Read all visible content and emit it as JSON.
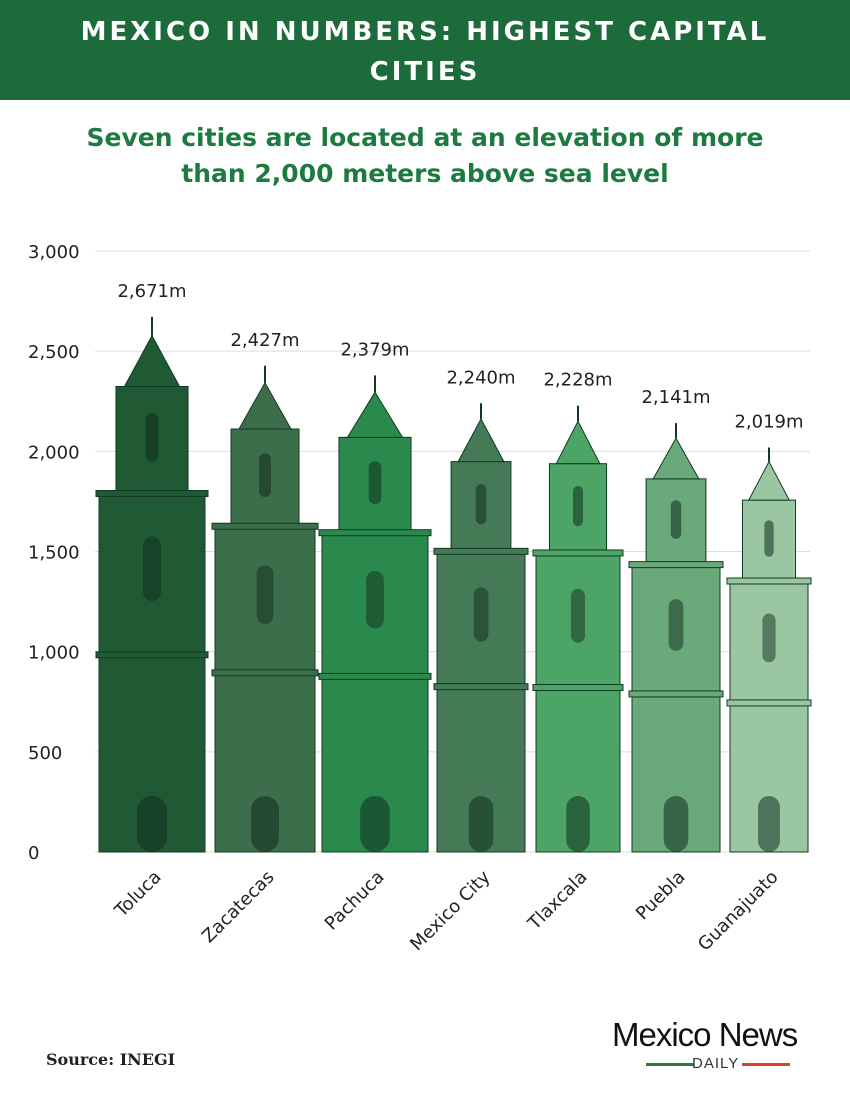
{
  "header": {
    "title": "MEXICO IN NUMBERS: HIGHEST CAPITAL CITIES"
  },
  "subtitle": "Seven cities are located at an elevation of more than 2,000 meters above sea level",
  "source": "Source: INEGI",
  "logo": {
    "name": "Mexico News",
    "tagline": "DAILY",
    "line_colors": [
      "#2e7d32",
      "#d9412b"
    ]
  },
  "colors": {
    "header_bg": "#1d6b3a",
    "subtitle": "#1d7a40",
    "grid": "#dddddd"
  },
  "chart_data": {
    "type": "bar",
    "title": "",
    "xlabel": "",
    "ylabel": "",
    "ylim": [
      0,
      3000
    ],
    "yticks": [
      0,
      500,
      1000,
      1500,
      2000,
      2500,
      3000
    ],
    "ytick_labels": [
      "0",
      "500",
      "1,000",
      "1,500",
      "2,000",
      "2,500",
      "3,000"
    ],
    "grid": true,
    "categories": [
      "Toluca",
      "Zacatecas",
      "Pachuca",
      "Mexico City",
      "Tlaxcala",
      "Puebla",
      "Guanajuato"
    ],
    "values": [
      2671,
      2427,
      2379,
      2240,
      2228,
      2141,
      2019
    ],
    "data_labels": [
      "2,671m",
      "2,427m",
      "2,379m",
      "2,240m",
      "2,228m",
      "2,141m",
      "2,019m"
    ],
    "bar_colors": [
      "#1f5a35",
      "#3d6e4c",
      "#2a8a4e",
      "#457a57",
      "#4ca567",
      "#6aa97a",
      "#9ac7a2"
    ]
  }
}
